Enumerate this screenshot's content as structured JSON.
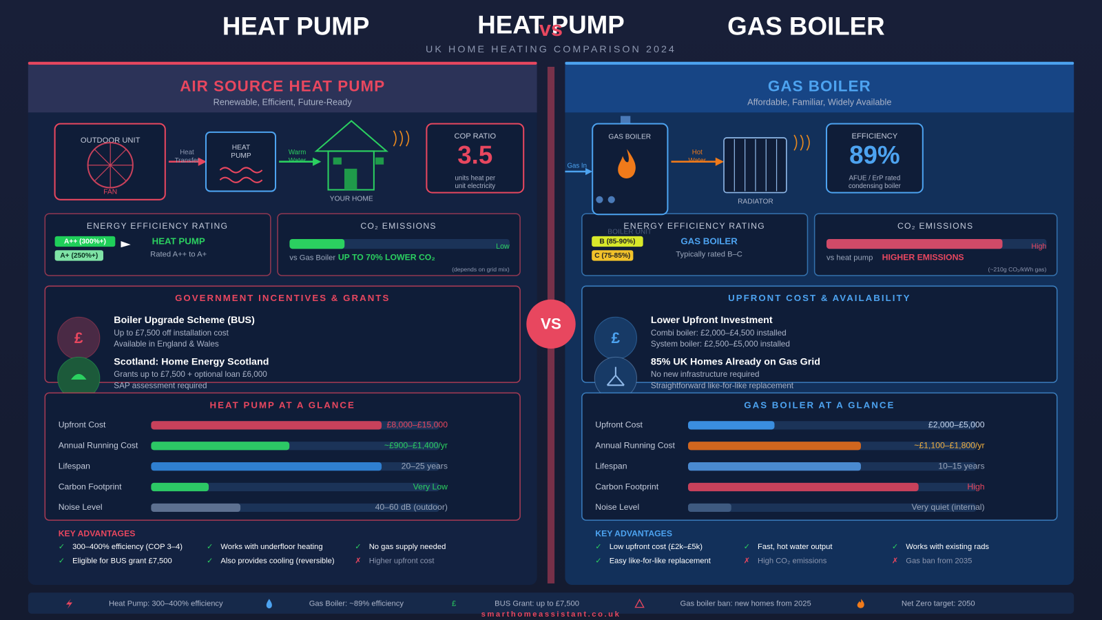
{
  "header": {
    "title_left": "HEAT PUMP",
    "title_center": "HEAT PUMP",
    "vs": "vs",
    "title_right": "GAS BOILER",
    "subtitle": "UK HOME HEATING COMPARISON 2024"
  },
  "vs_badge": "VS",
  "heat_pump": {
    "title": "AIR SOURCE HEAT PUMP",
    "subtitle": "Renewable, Efficient, Future-Ready",
    "diagram": {
      "outdoor_unit": "OUTDOOR UNIT",
      "fan": "FAN",
      "flow_1": [
        "Heat",
        "Transfer"
      ],
      "unit": [
        "HEAT",
        "PUMP"
      ],
      "flow_2": [
        "Warm",
        "Water"
      ],
      "home": "YOUR HOME"
    },
    "metric": {
      "label": "COP RATIO",
      "value": "3.5",
      "note": [
        "units heat per",
        "unit electricity"
      ]
    },
    "rating": {
      "title": "ENERGY EFFICIENCY RATING",
      "badges": [
        "A++ (300%+)",
        "A+ (250%+)"
      ],
      "name": "HEAT PUMP",
      "note": "Rated A++ to A+"
    },
    "co2": {
      "title": "CO₂ EMISSIONS",
      "level": 25,
      "level_label": "Low",
      "compare_label": "vs Gas Boiler",
      "compare": "UP TO 70% LOWER CO₂",
      "note": "(depends on grid mix)"
    },
    "info": {
      "title": "GOVERNMENT INCENTIVES & GRANTS",
      "items": [
        {
          "icon": "£",
          "title": "Boiler Upgrade Scheme (BUS)",
          "lines": [
            "Up to £7,500 off installation cost",
            "Available in England & Wales"
          ]
        },
        {
          "title": "Scotland: Home Energy Scotland",
          "lines": [
            "Grants up to £7,500 + optional loan £6,000",
            "SAP assessment required"
          ]
        }
      ]
    },
    "glance": {
      "title": "HEAT PUMP AT A GLANCE",
      "rows": [
        {
          "label": "Upfront Cost",
          "value": "£8,000–£15,000",
          "level": 80,
          "color": "#c8415b"
        },
        {
          "label": "Annual Running Cost",
          "value": "~£900–£1,400/yr",
          "level": 48,
          "color": "#2cc865"
        },
        {
          "label": "Lifespan",
          "value": "20–25 years",
          "level": 80,
          "color": "#2f7fd0"
        },
        {
          "label": "Carbon Footprint",
          "value": "Very Low",
          "level": 20,
          "color": "#2cc865"
        },
        {
          "label": "Noise Level",
          "value": "40–60 dB (outdoor)",
          "level": 31,
          "color": "#5d7090"
        }
      ]
    },
    "advantages": {
      "title": "KEY ADVANTAGES",
      "items": [
        {
          "mark": "✓",
          "text": "300–400% efficiency (COP 3–4)"
        },
        {
          "mark": "✓",
          "text": "Works with underfloor heating"
        },
        {
          "mark": "✓",
          "text": "No gas supply needed"
        },
        {
          "mark": "✓",
          "text": "Eligible for BUS grant £7,500"
        },
        {
          "mark": "✓",
          "text": "Also provides cooling (reversible)"
        },
        {
          "mark": "✗",
          "text": "Higher upfront cost"
        }
      ]
    }
  },
  "gas_boiler": {
    "title": "GAS BOILER",
    "subtitle": "Affordable, Familiar, Widely Available",
    "diagram": {
      "unit": "GAS BOILER",
      "unit_label": "BOILER UNIT",
      "flow_in": "Gas In",
      "flow_1": [
        "Hot",
        "Water"
      ],
      "radiator": "RADIATOR"
    },
    "metric": {
      "label": "EFFICIENCY",
      "value": "89%",
      "note": [
        "AFUE / ErP rated",
        "condensing boiler"
      ]
    },
    "rating": {
      "title": "ENERGY EFFICIENCY RATING",
      "badges": [
        "B (85-90%)",
        "C (75-85%)"
      ],
      "name": "GAS BOILER",
      "note": "Typically rated B–C"
    },
    "co2": {
      "title": "CO₂ EMISSIONS",
      "level": 80,
      "level_label": "High",
      "compare_label": "vs heat pump",
      "compare": "HIGHER EMISSIONS",
      "note": "(~210g CO₂/kWh gas)"
    },
    "info": {
      "title": "UPFRONT COST & AVAILABILITY",
      "items": [
        {
          "icon": "£",
          "title": "Lower Upfront Investment",
          "lines": [
            "Combi boiler: £2,000–£4,500 installed",
            "System boiler: £2,500–£5,000 installed"
          ]
        },
        {
          "title": "85% UK Homes Already on Gas Grid",
          "lines": [
            "No new infrastructure required",
            "Straightforward like-for-like replacement"
          ]
        }
      ]
    },
    "glance": {
      "title": "GAS BOILER AT A GLANCE",
      "rows": [
        {
          "label": "Upfront Cost",
          "value": "£2,000–£5,000",
          "level": 30,
          "color": "#3a8ee0"
        },
        {
          "label": "Annual Running Cost",
          "value": "~£1,100–£1,800/yr",
          "level": 60,
          "color": "#d0661e"
        },
        {
          "label": "Lifespan",
          "value": "10–15 years",
          "level": 60,
          "color": "#4a8ad0"
        },
        {
          "label": "Carbon Footprint",
          "value": "High",
          "level": 80,
          "color": "#c8415b"
        },
        {
          "label": "Noise Level",
          "value": "Very quiet (internal)",
          "level": 15,
          "color": "#3e5a80"
        }
      ]
    },
    "advantages": {
      "title": "KEY ADVANTAGES",
      "items": [
        {
          "mark": "✓",
          "text": "Low upfront cost (£2k–£5k)"
        },
        {
          "mark": "✓",
          "text": "Fast, hot water output"
        },
        {
          "mark": "✓",
          "text": "Works with existing rads"
        },
        {
          "mark": "✓",
          "text": "Easy like-for-like replacement"
        },
        {
          "mark": "✗",
          "text": "High CO₂ emissions"
        },
        {
          "mark": "✗",
          "text": "Gas ban from 2035"
        }
      ]
    }
  },
  "footer": {
    "items": [
      {
        "text": "Heat Pump: 300–400% efficiency"
      },
      {
        "text": "Gas Boiler: ~89% efficiency"
      },
      {
        "icon": "£",
        "text": "BUS Grant: up to £7,500"
      },
      {
        "text": "Gas boiler ban: new homes from 2025"
      },
      {
        "text": "Net Zero target: 2050"
      }
    ],
    "website": "smarthomeassistant.co.uk"
  }
}
